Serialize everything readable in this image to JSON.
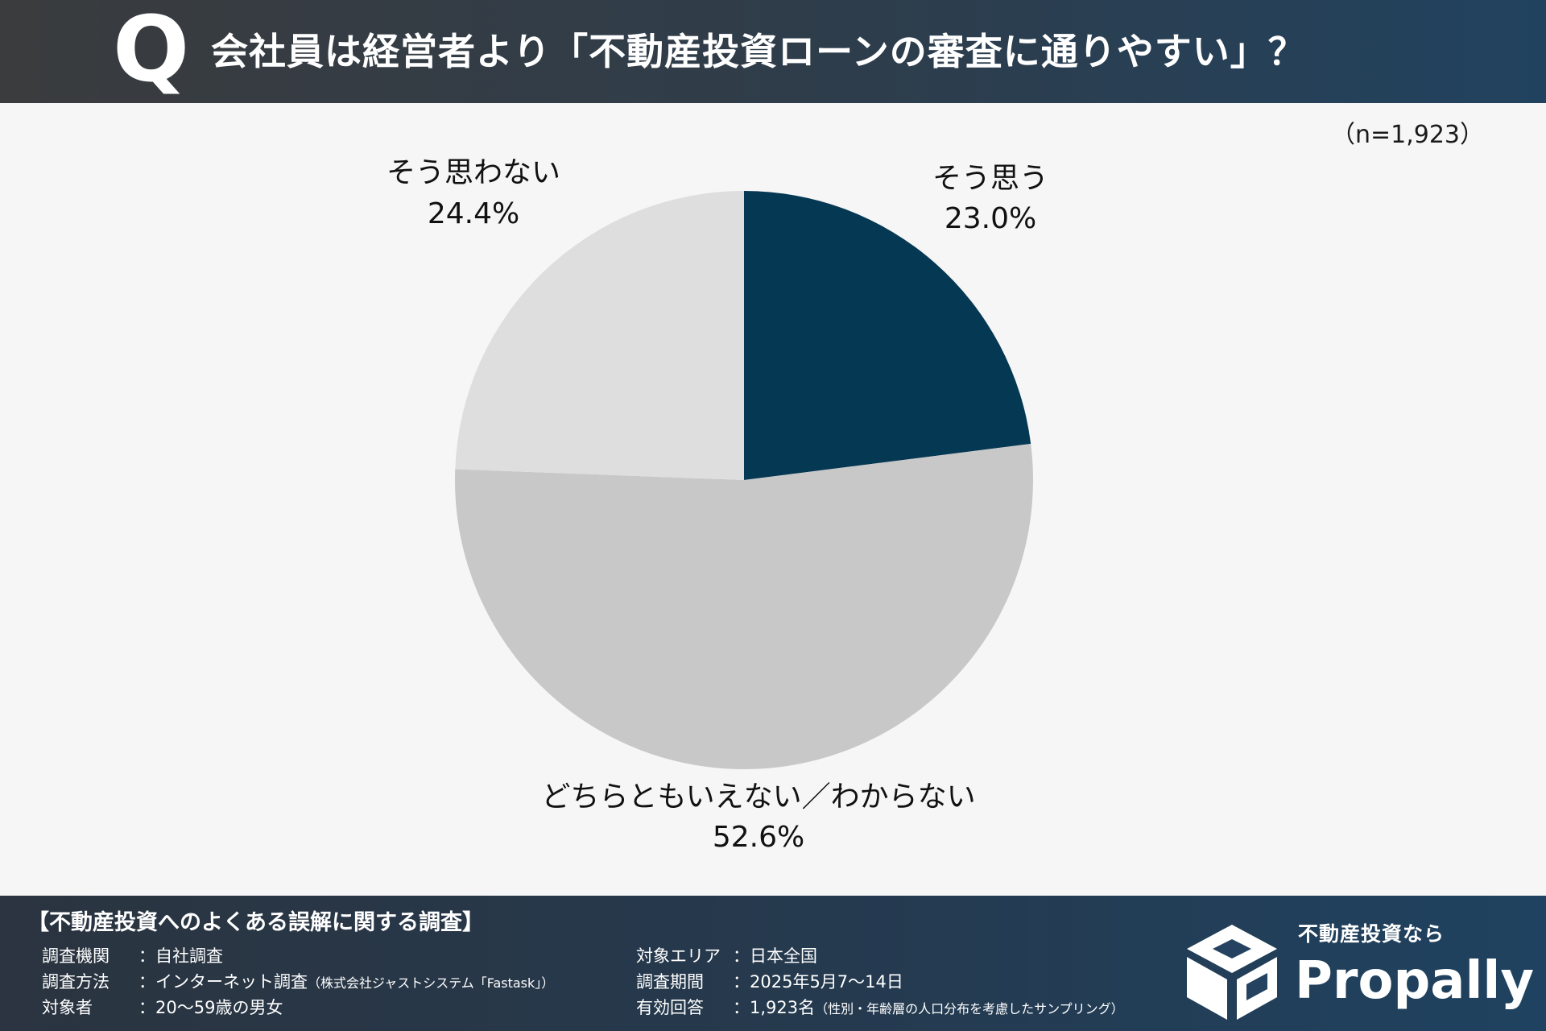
{
  "header": {
    "q_mark": "Q",
    "title": "会社員は経営者より「不動産投資ローンの審査に通りやすい」？"
  },
  "sample_size": "（n=1,923）",
  "chart_data": {
    "type": "pie",
    "title": "会社員は経営者より「不動産投資ローンの審査に通りやすい」？",
    "slices": [
      {
        "label": "そう思う",
        "value": 23.0,
        "value_label": "23.0%",
        "color": "#053852"
      },
      {
        "label": "どちらともいえない／わからない",
        "value": 52.6,
        "value_label": "52.6%",
        "color": "#c8c8c8"
      },
      {
        "label": "そう思わない",
        "value": 24.4,
        "value_label": "24.4%",
        "color": "#dedede"
      }
    ],
    "start": "12 o'clock",
    "direction": "clockwise"
  },
  "footer": {
    "title": "【不動産投資へのよくある誤解に関する調査】",
    "rows_left": [
      {
        "label": "調査機関",
        "value": "：自社調査",
        "note": ""
      },
      {
        "label": "調査方法",
        "value": "：インターネット調査",
        "note": "（株式会社ジャストシステム「Fastask」）"
      },
      {
        "label": "対象者",
        "value": "：20〜59歳の男女",
        "note": ""
      }
    ],
    "rows_right": [
      {
        "label": "対象エリア",
        "value": "：日本全国",
        "note": ""
      },
      {
        "label": "調査期間",
        "value": "：2025年5月7〜14日",
        "note": ""
      },
      {
        "label": "有効回答",
        "value": "：1,923名",
        "note": "（性別・年齢層の人口分布を考慮したサンプリング）"
      }
    ]
  },
  "logo": {
    "tagline": "不動産投資なら",
    "name": "Propally",
    "icon": "box-logo-icon"
  }
}
